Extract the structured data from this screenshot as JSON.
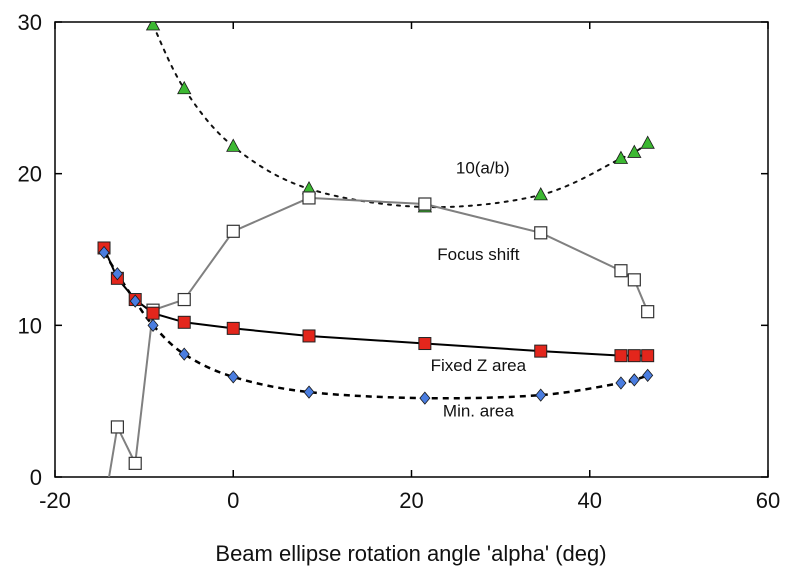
{
  "chart_data": {
    "type": "scatter",
    "title": "",
    "xlabel": "Beam ellipse rotation angle 'alpha' (deg)",
    "ylabel": "",
    "xlim": [
      -20,
      60
    ],
    "ylim": [
      0,
      30
    ],
    "xticks": [
      -20,
      0,
      20,
      40,
      60
    ],
    "yticks": [
      0,
      10,
      20,
      30
    ],
    "grid": false,
    "legend": "none",
    "series": [
      {
        "key": "ratio",
        "label": "10(a/b)",
        "marker": "triangle",
        "color": "#3cb832",
        "line_color": "#111111",
        "line_style": "dotted",
        "line_mode": "smooth",
        "x": [
          -9,
          -5.5,
          0,
          8.5,
          21.5,
          34.5,
          43.5,
          45,
          46.5
        ],
        "y": [
          29.8,
          25.6,
          21.8,
          19.0,
          17.8,
          18.6,
          21.0,
          21.4,
          22.0
        ]
      },
      {
        "key": "focus",
        "label": "Focus shift",
        "marker": "square-open",
        "color": "#ffffff",
        "line_color": "#808080",
        "line_style": "solid",
        "line_mode": "straight",
        "x": [
          -14.5,
          -13,
          -11,
          -9,
          -5.5,
          0,
          8.5,
          21.5,
          34.5,
          43.5,
          45,
          46.5
        ],
        "y": [
          -2,
          3.3,
          0.9,
          11.0,
          11.7,
          16.2,
          18.4,
          18.0,
          16.1,
          13.6,
          13.0,
          10.9
        ]
      },
      {
        "key": "fixedz",
        "label": "Fixed Z area",
        "marker": "square",
        "color": "#e3261c",
        "line_color": "#000000",
        "line_style": "solid",
        "line_mode": "straight",
        "x": [
          -14.5,
          -13,
          -11,
          -9,
          -5.5,
          0,
          8.5,
          21.5,
          34.5,
          43.5,
          45,
          46.5
        ],
        "y": [
          15.1,
          13.1,
          11.7,
          10.8,
          10.2,
          9.8,
          9.3,
          8.8,
          8.3,
          8.0,
          8.0,
          8.0
        ]
      },
      {
        "key": "minarea",
        "label": "Min. area",
        "marker": "diamond",
        "color": "#4a7de0",
        "line_color": "#000000",
        "line_style": "dashed",
        "line_mode": "smooth",
        "x": [
          -14.5,
          -13,
          -11,
          -9,
          -5.5,
          0,
          8.5,
          21.5,
          34.5,
          43.5,
          45,
          46.5
        ],
        "y": [
          14.8,
          13.4,
          11.6,
          10.0,
          8.1,
          6.6,
          5.6,
          5.2,
          5.4,
          6.2,
          6.4,
          6.7
        ]
      }
    ],
    "annotations": [
      {
        "text": "10(a/b)",
        "x": 28,
        "y": 20.0
      },
      {
        "text": "Focus shift",
        "x": 27.5,
        "y": 14.3
      },
      {
        "text": "Fixed Z area",
        "x": 27.5,
        "y": 7.0
      },
      {
        "text": "Min. area",
        "x": 27.5,
        "y": 4.0
      }
    ]
  }
}
